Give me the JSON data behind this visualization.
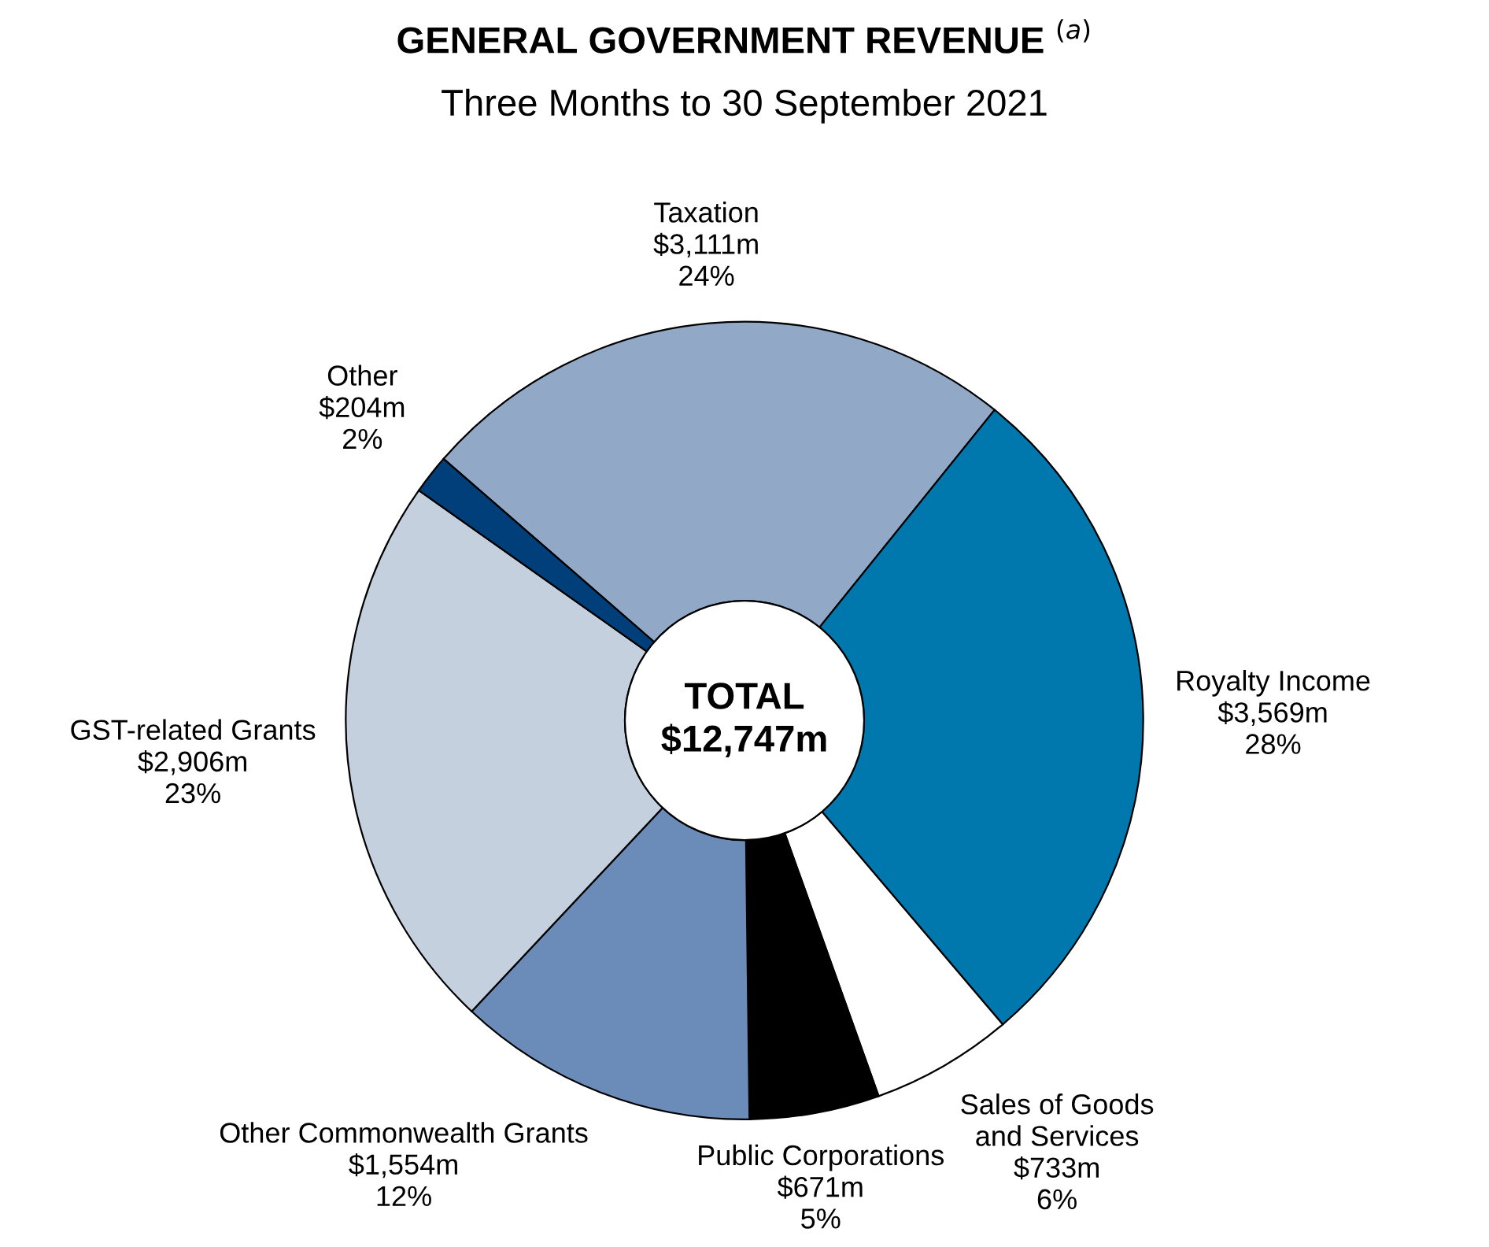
{
  "chart_data": {
    "type": "donut",
    "title": "GENERAL GOVERNMENT REVENUE $^{(a)}$",
    "subtitle": "Three Months to 30 September 2021",
    "categories": [
      "Taxation",
      "Royalty Income",
      "Sales of Goods\nand Services",
      "Public Corporations",
      "Other Commonwealth Grants",
      "GST-related Grants",
      "Other"
    ],
    "values": [
      3111,
      3569,
      733,
      671,
      1554,
      2906,
      204
    ],
    "colors": [
      "#91a8c6",
      "#0077ad",
      "#ffffff",
      "#000000",
      "#6b8cb9",
      "#c5d0df",
      "#003f7a"
    ],
    "value_labels": [
      "$3,111m",
      "$3,569m",
      "$733m",
      "$671m",
      "$1,554m",
      "$2,906m",
      "$204m"
    ],
    "annotations": [
      "TOTAL\n$12,747m",
      {
        "text": "24%",
        "x": "Taxation"
      },
      {
        "text": "28%",
        "x": "Royalty Income"
      },
      {
        "text": "6%",
        "x": "Sales of Goods\nand Services"
      },
      {
        "text": "5%",
        "x": "Public Corporations"
      },
      {
        "text": "12%",
        "x": "Other Commonwealth Grants"
      },
      {
        "text": "23%",
        "x": "GST-related Grants"
      },
      {
        "text": "2%",
        "x": "Other"
      }
    ]
  }
}
